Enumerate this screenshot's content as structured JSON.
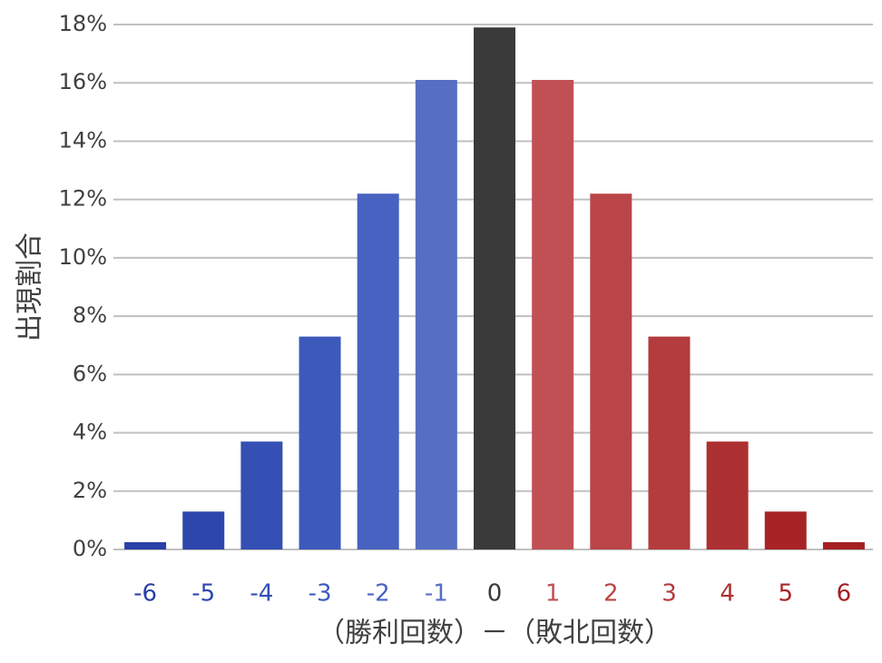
{
  "chart_data": {
    "type": "bar",
    "x_label": "（勝利回数）－（敗北回数）",
    "y_label": "出現割合",
    "categories": [
      "-6",
      "-5",
      "-4",
      "-3",
      "-2",
      "-1",
      "0",
      "1",
      "2",
      "3",
      "4",
      "5",
      "6"
    ],
    "values": [
      0.25,
      1.3,
      3.7,
      7.3,
      12.2,
      16.1,
      17.9,
      16.1,
      12.2,
      7.3,
      3.7,
      1.3,
      0.25
    ],
    "colors": [
      "#2a40a6",
      "#2d46ab",
      "#3450b4",
      "#3d59bc",
      "#4762c0",
      "#566fc2",
      "#3a3a3a",
      "#c05054",
      "#b94548",
      "#b43b3e",
      "#ad3032",
      "#a82326",
      "#a51f22"
    ],
    "ylim": [
      0,
      18
    ],
    "yticks": [
      {
        "value": 0,
        "label": "0%"
      },
      {
        "value": 2,
        "label": "2%"
      },
      {
        "value": 4,
        "label": "4%"
      },
      {
        "value": 6,
        "label": "6%"
      },
      {
        "value": 8,
        "label": "8%"
      },
      {
        "value": 10,
        "label": "10%"
      },
      {
        "value": 12,
        "label": "12%"
      },
      {
        "value": 14,
        "label": "14%"
      },
      {
        "value": 16,
        "label": "16%"
      },
      {
        "value": 18,
        "label": "18%"
      }
    ],
    "grid": true
  }
}
